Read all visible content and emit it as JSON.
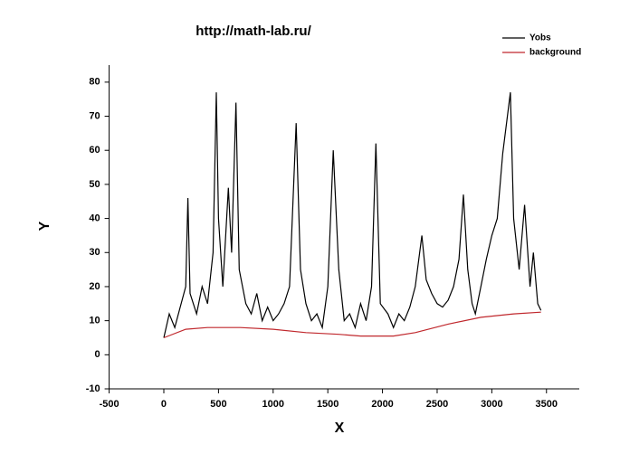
{
  "chart_data": {
    "type": "line",
    "title": "http://math-lab.ru/",
    "x_label": "X",
    "y_label": "Y",
    "xlim": [
      -500,
      3800
    ],
    "ylim": [
      -10,
      85
    ],
    "xticks": [
      -500,
      0,
      500,
      1000,
      1500,
      2000,
      2500,
      3000,
      3500
    ],
    "yticks": [
      -10,
      0,
      10,
      20,
      30,
      40,
      50,
      60,
      70,
      80
    ],
    "legend": "top-right",
    "series": [
      {
        "name": "Yobs",
        "color": "#000000",
        "x": [
          0,
          50,
          100,
          150,
          200,
          220,
          240,
          300,
          350,
          400,
          450,
          480,
          500,
          540,
          590,
          620,
          660,
          690,
          750,
          800,
          850,
          900,
          950,
          1000,
          1050,
          1100,
          1150,
          1210,
          1250,
          1300,
          1350,
          1400,
          1450,
          1500,
          1550,
          1600,
          1650,
          1700,
          1750,
          1800,
          1850,
          1900,
          1940,
          1980,
          2050,
          2100,
          2150,
          2200,
          2250,
          2300,
          2360,
          2400,
          2450,
          2500,
          2550,
          2600,
          2650,
          2700,
          2740,
          2780,
          2820,
          2850,
          2900,
          2950,
          3000,
          3050,
          3100,
          3170,
          3200,
          3250,
          3300,
          3350,
          3380,
          3420,
          3450
        ],
        "values": [
          5,
          12,
          8,
          14,
          20,
          46,
          18,
          12,
          20,
          15,
          30,
          77,
          40,
          20,
          49,
          30,
          74,
          25,
          15,
          12,
          18,
          10,
          14,
          10,
          12,
          15,
          20,
          68,
          25,
          15,
          10,
          12,
          8,
          20,
          60,
          25,
          10,
          12,
          8,
          15,
          10,
          20,
          62,
          15,
          12,
          8,
          12,
          10,
          14,
          20,
          35,
          22,
          18,
          15,
          14,
          16,
          20,
          28,
          47,
          25,
          15,
          12,
          20,
          28,
          35,
          40,
          59,
          77,
          40,
          25,
          44,
          20,
          30,
          15,
          13
        ]
      },
      {
        "name": "background",
        "color": "#c0282d",
        "x": [
          0,
          200,
          400,
          700,
          1000,
          1300,
          1600,
          1800,
          2100,
          2300,
          2600,
          2900,
          3200,
          3450
        ],
        "values": [
          5,
          7.5,
          8,
          8,
          7.5,
          6.5,
          6,
          5.5,
          5.5,
          6.5,
          9,
          11,
          12,
          12.5
        ]
      }
    ]
  }
}
